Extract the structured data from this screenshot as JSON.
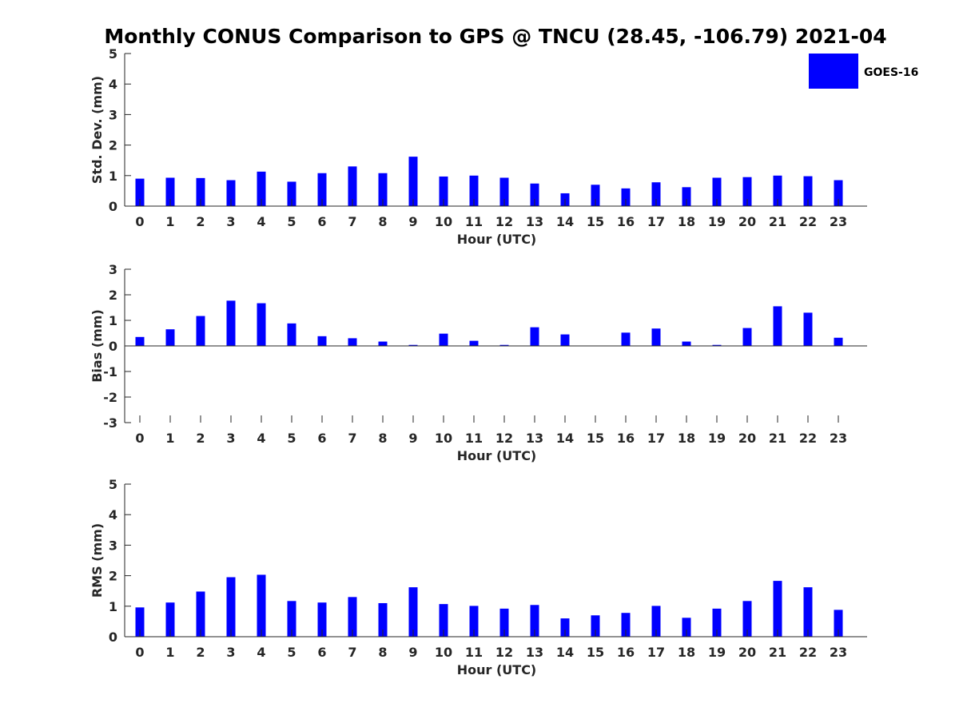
{
  "title": "Monthly CONUS Comparison to GPS @ TNCU (28.45, -106.79) 2021-04",
  "colors": {
    "bar": "#0000ff",
    "axis": "#262626"
  },
  "chart_data": [
    {
      "type": "bar",
      "title": "Monthly CONUS Comparison to GPS @ TNCU (28.45, -106.79) 2021-04",
      "xlabel": "Hour (UTC)",
      "ylabel": "Std. Dev. (mm)",
      "ylim": [
        0,
        5
      ],
      "yticks": [
        0,
        1,
        2,
        3,
        4,
        5
      ],
      "grid": false,
      "legend_position": "top-right",
      "categories": [
        "0",
        "1",
        "2",
        "3",
        "4",
        "5",
        "6",
        "7",
        "8",
        "9",
        "10",
        "11",
        "12",
        "13",
        "14",
        "15",
        "16",
        "17",
        "18",
        "19",
        "20",
        "21",
        "22",
        "23"
      ],
      "series": [
        {
          "name": "GOES-16",
          "values": [
            0.9,
            0.93,
            0.92,
            0.85,
            1.13,
            0.8,
            1.08,
            1.3,
            1.08,
            1.62,
            0.97,
            1.0,
            0.93,
            0.74,
            0.42,
            0.7,
            0.58,
            0.78,
            0.62,
            0.93,
            0.95,
            1.0,
            0.98,
            0.85
          ]
        }
      ]
    },
    {
      "type": "bar",
      "xlabel": "Hour (UTC)",
      "ylabel": "Bias (mm)",
      "ylim": [
        -3,
        3
      ],
      "yticks": [
        -3,
        -2,
        -1,
        0,
        1,
        2,
        3
      ],
      "grid": false,
      "categories": [
        "0",
        "1",
        "2",
        "3",
        "4",
        "5",
        "6",
        "7",
        "8",
        "9",
        "10",
        "11",
        "12",
        "13",
        "14",
        "15",
        "16",
        "17",
        "18",
        "19",
        "20",
        "21",
        "22",
        "23"
      ],
      "series": [
        {
          "name": "GOES-16",
          "values": [
            0.35,
            0.65,
            1.17,
            1.77,
            1.67,
            0.88,
            0.38,
            0.3,
            0.17,
            0.04,
            0.48,
            0.2,
            0.04,
            0.73,
            0.45,
            0.0,
            0.52,
            0.68,
            0.17,
            0.04,
            0.7,
            1.55,
            1.3,
            0.32
          ]
        }
      ]
    },
    {
      "type": "bar",
      "xlabel": "Hour (UTC)",
      "ylabel": "RMS (mm)",
      "ylim": [
        0,
        5
      ],
      "yticks": [
        0,
        1,
        2,
        3,
        4,
        5
      ],
      "grid": false,
      "categories": [
        "0",
        "1",
        "2",
        "3",
        "4",
        "5",
        "6",
        "7",
        "8",
        "9",
        "10",
        "11",
        "12",
        "13",
        "14",
        "15",
        "16",
        "17",
        "18",
        "19",
        "20",
        "21",
        "22",
        "23"
      ],
      "series": [
        {
          "name": "GOES-16",
          "values": [
            0.96,
            1.12,
            1.48,
            1.95,
            2.03,
            1.17,
            1.12,
            1.3,
            1.1,
            1.62,
            1.07,
            1.01,
            0.92,
            1.04,
            0.6,
            0.7,
            0.78,
            1.01,
            0.62,
            0.92,
            1.17,
            1.83,
            1.62,
            0.88
          ]
        }
      ]
    }
  ]
}
